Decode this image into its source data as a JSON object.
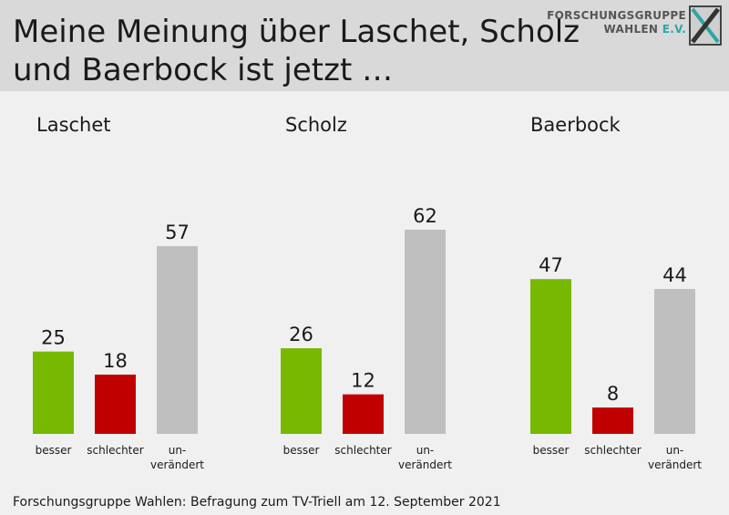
{
  "header": {
    "title_line1": "Meine Meinung über Laschet, Scholz",
    "title_line2": "und Baerbock ist jetzt …",
    "logo_line1": "FORSCHUNGSGRUPPE",
    "logo_line2_a": "WAHLEN",
    "logo_line2_b": "E.V."
  },
  "footer": {
    "source": "Forschungsgruppe  Wahlen: Befragung zum TV-Triell am 12. September 2021"
  },
  "colors": {
    "besser": "#76b900",
    "schlechter": "#c00000",
    "unveraendert": "#bfbfbf"
  },
  "chart_data": {
    "type": "bar",
    "categories": [
      "besser",
      "schlechter",
      "un-\nverändert"
    ],
    "groups": [
      {
        "name": "Laschet",
        "values": [
          25,
          18,
          57
        ]
      },
      {
        "name": "Scholz",
        "values": [
          26,
          12,
          62
        ]
      },
      {
        "name": "Baerbock",
        "values": [
          47,
          8,
          44
        ]
      }
    ],
    "ylim": [
      0,
      62
    ],
    "title": "",
    "xlabel": "",
    "ylabel": ""
  }
}
